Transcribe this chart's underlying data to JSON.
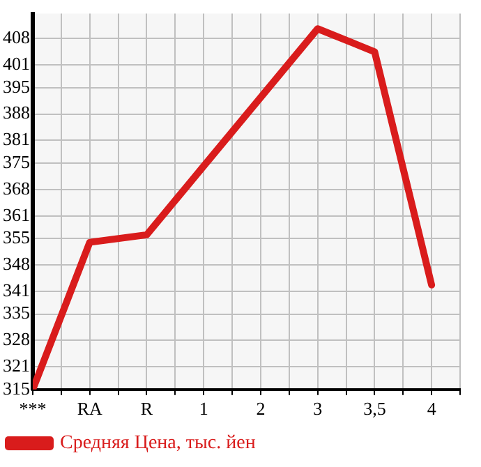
{
  "chart_data": {
    "type": "line",
    "categories": [
      "***",
      "RA",
      "R",
      "1",
      "2",
      "3",
      "3,5",
      "4"
    ],
    "series": [
      {
        "name": "Средняя Цена, тыс. йен",
        "color": "#d91c1c",
        "values": [
          315,
          354,
          356,
          374.2,
          392.4,
          410.6,
          404.5,
          342.7
        ]
      }
    ],
    "ylim": [
      315,
      414.6
    ],
    "yticks": [
      315,
      321,
      328,
      335,
      341,
      348,
      355,
      361,
      368,
      375,
      381,
      388,
      395,
      401,
      408
    ],
    "grid": true,
    "legend": "bottom",
    "marker": "none",
    "line_style": "solid"
  }
}
